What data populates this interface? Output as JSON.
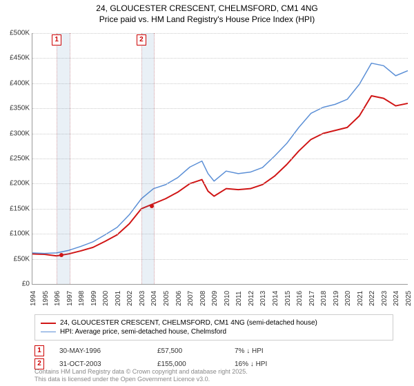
{
  "title_line1": "24, GLOUCESTER CRESCENT, CHELMSFORD, CM1 4NG",
  "title_line2": "Price paid vs. HM Land Registry's House Price Index (HPI)",
  "chart": {
    "type": "line",
    "x_axis": {
      "min_year": 1994,
      "max_year": 2025,
      "ticks": [
        1994,
        1995,
        1996,
        1997,
        1998,
        1999,
        2000,
        2001,
        2002,
        2003,
        2004,
        2005,
        2006,
        2007,
        2008,
        2009,
        2010,
        2011,
        2012,
        2013,
        2014,
        2015,
        2016,
        2017,
        2018,
        2019,
        2020,
        2021,
        2022,
        2023,
        2024,
        2025
      ]
    },
    "y_axis": {
      "min": 0,
      "max": 500000,
      "tick_step": 50000,
      "labels": [
        "£0",
        "£50K",
        "£100K",
        "£150K",
        "£200K",
        "£250K",
        "£300K",
        "£350K",
        "£400K",
        "£450K",
        "£500K"
      ]
    },
    "grid_color": "#cccccc",
    "background_color": "#ffffff",
    "shade_bands": [
      {
        "from_year": 1996,
        "to_year": 1997,
        "marker": "1"
      },
      {
        "from_year": 2003,
        "to_year": 2004,
        "marker": "2"
      }
    ],
    "series": [
      {
        "id": "property",
        "label": "24, GLOUCESTER CRESCENT, CHELMSFORD, CM1 4NG (semi-detached house)",
        "color": "#d01515",
        "width": 2,
        "points": [
          [
            1994,
            60000
          ],
          [
            1995,
            59000
          ],
          [
            1996,
            56000
          ],
          [
            1997,
            60000
          ],
          [
            1998,
            66000
          ],
          [
            1999,
            73000
          ],
          [
            2000,
            85000
          ],
          [
            2001,
            98000
          ],
          [
            2002,
            120000
          ],
          [
            2003,
            150000
          ],
          [
            2004,
            160000
          ],
          [
            2005,
            170000
          ],
          [
            2006,
            183000
          ],
          [
            2007,
            200000
          ],
          [
            2008,
            208000
          ],
          [
            2008.5,
            185000
          ],
          [
            2009,
            175000
          ],
          [
            2010,
            190000
          ],
          [
            2011,
            188000
          ],
          [
            2012,
            190000
          ],
          [
            2013,
            198000
          ],
          [
            2014,
            215000
          ],
          [
            2015,
            238000
          ],
          [
            2016,
            265000
          ],
          [
            2017,
            288000
          ],
          [
            2018,
            300000
          ],
          [
            2019,
            306000
          ],
          [
            2020,
            312000
          ],
          [
            2021,
            335000
          ],
          [
            2022,
            375000
          ],
          [
            2023,
            370000
          ],
          [
            2024,
            355000
          ],
          [
            2025,
            360000
          ]
        ]
      },
      {
        "id": "hpi",
        "label": "HPI: Average price, semi-detached house, Chelmsford",
        "color": "#5b8fd6",
        "width": 1.5,
        "points": [
          [
            1994,
            62000
          ],
          [
            1995,
            61000
          ],
          [
            1996,
            62000
          ],
          [
            1997,
            67000
          ],
          [
            1998,
            75000
          ],
          [
            1999,
            84000
          ],
          [
            2000,
            98000
          ],
          [
            2001,
            113000
          ],
          [
            2002,
            138000
          ],
          [
            2003,
            170000
          ],
          [
            2004,
            190000
          ],
          [
            2005,
            198000
          ],
          [
            2006,
            212000
          ],
          [
            2007,
            233000
          ],
          [
            2008,
            245000
          ],
          [
            2008.5,
            220000
          ],
          [
            2009,
            205000
          ],
          [
            2010,
            225000
          ],
          [
            2011,
            220000
          ],
          [
            2012,
            223000
          ],
          [
            2013,
            232000
          ],
          [
            2014,
            255000
          ],
          [
            2015,
            280000
          ],
          [
            2016,
            312000
          ],
          [
            2017,
            340000
          ],
          [
            2018,
            352000
          ],
          [
            2019,
            358000
          ],
          [
            2020,
            368000
          ],
          [
            2021,
            398000
          ],
          [
            2022,
            440000
          ],
          [
            2023,
            435000
          ],
          [
            2024,
            415000
          ],
          [
            2025,
            425000
          ]
        ]
      }
    ],
    "sale_markers": [
      {
        "year": 1996.41,
        "value": 57500,
        "color": "#d01515"
      },
      {
        "year": 2003.83,
        "value": 155000,
        "color": "#d01515"
      }
    ]
  },
  "legend": {
    "rows": [
      {
        "swatch_color": "#d01515",
        "swatch_width": 2,
        "text": "24, GLOUCESTER CRESCENT, CHELMSFORD, CM1 4NG (semi-detached house)"
      },
      {
        "swatch_color": "#5b8fd6",
        "swatch_width": 1.5,
        "text": "HPI: Average price, semi-detached house, Chelmsford"
      }
    ]
  },
  "sales": [
    {
      "marker": "1",
      "date": "30-MAY-1996",
      "price": "£57,500",
      "diff": "7% ↓ HPI"
    },
    {
      "marker": "2",
      "date": "31-OCT-2003",
      "price": "£155,000",
      "diff": "16% ↓ HPI"
    }
  ],
  "footer_line1": "Contains HM Land Registry data © Crown copyright and database right 2025.",
  "footer_line2": "This data is licensed under the Open Government Licence v3.0."
}
